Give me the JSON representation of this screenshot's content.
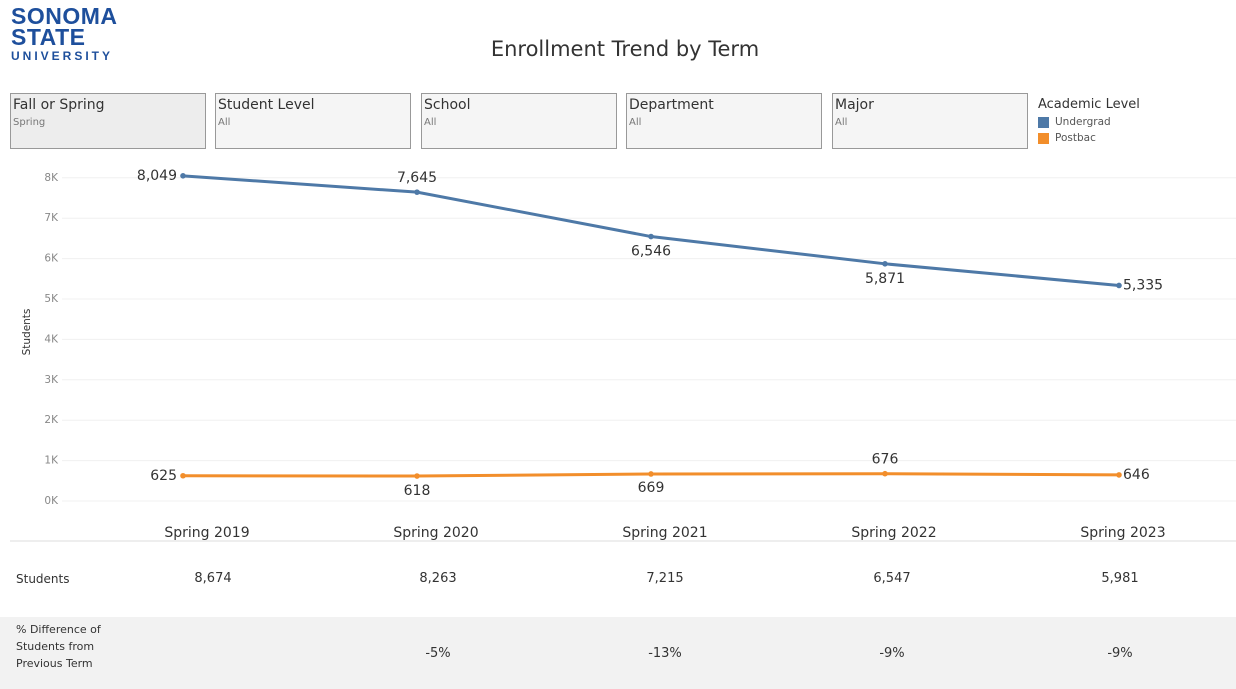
{
  "logo": {
    "line1": "SONOMA",
    "line2": "STATE",
    "line3": "UNIVERSITY"
  },
  "filters": [
    {
      "label": "Fall or Spring",
      "value": "Spring"
    },
    {
      "label": "Student Level",
      "value": "All"
    },
    {
      "label": "School",
      "value": "All"
    },
    {
      "label": "Department",
      "value": "All"
    },
    {
      "label": "Major",
      "value": "All"
    }
  ],
  "chart_data": {
    "type": "line",
    "title": "Enrollment Trend by Term",
    "legend_title": "Academic Level",
    "ylabel": "Students",
    "categories": [
      "Spring 2019",
      "Spring 2020",
      "Spring 2021",
      "Spring 2022",
      "Spring 2023"
    ],
    "series": [
      {
        "name": "Undergrad",
        "color": "#4e79a7",
        "values": [
          8049,
          7645,
          6546,
          5871,
          5335
        ],
        "value_labels": [
          "8,049",
          "7,645",
          "6,546",
          "5,871",
          "5,335"
        ]
      },
      {
        "name": "Postbac",
        "color": "#f28e2b",
        "values": [
          625,
          618,
          669,
          676,
          646
        ]
      }
    ],
    "ylim": [
      0,
      8400
    ],
    "yticks": [
      {
        "value": 0,
        "label": "0K"
      },
      {
        "value": 1000,
        "label": "1K"
      },
      {
        "value": 2000,
        "label": "2K"
      },
      {
        "value": 3000,
        "label": "3K"
      },
      {
        "value": 4000,
        "label": "4K"
      },
      {
        "value": 5000,
        "label": "5K"
      },
      {
        "value": 6000,
        "label": "6K"
      },
      {
        "value": 7000,
        "label": "7K"
      },
      {
        "value": 8000,
        "label": "8K"
      }
    ],
    "grid": true
  },
  "table": {
    "students_label": "Students",
    "students": [
      "8,674",
      "8,263",
      "7,215",
      "6,547",
      "5,981"
    ],
    "diff_label": "% Difference of Students from Previous Term",
    "diff": [
      "-5%",
      "-13%",
      "-9%",
      "-9%"
    ]
  }
}
